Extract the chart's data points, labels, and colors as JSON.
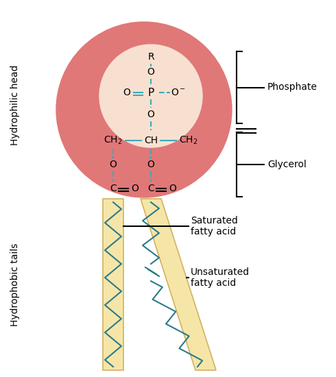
{
  "bg_color": "#ffffff",
  "head_circle_color": "#e07878",
  "head_circle_inner_color": "#f8e0d0",
  "tail_rect_color": "#f5e6a8",
  "tail_edge_color": "#d4b060",
  "tail_line_color": "#2a7a8a",
  "bond_color": "#3aabbb",
  "text_color": "#000000",
  "phosphate_label": "Phosphate",
  "glycerol_label": "Glycerol",
  "sat_label": "Saturated\nfatty acid",
  "unsat_label": "Unsaturated\nfatty acid",
  "hydrophilic_label": "Hydrophilic head",
  "hydrophobic_label": "Hydrophobic tails",
  "fontsize_chem": 10,
  "fontsize_label": 10,
  "fontsize_side": 10
}
